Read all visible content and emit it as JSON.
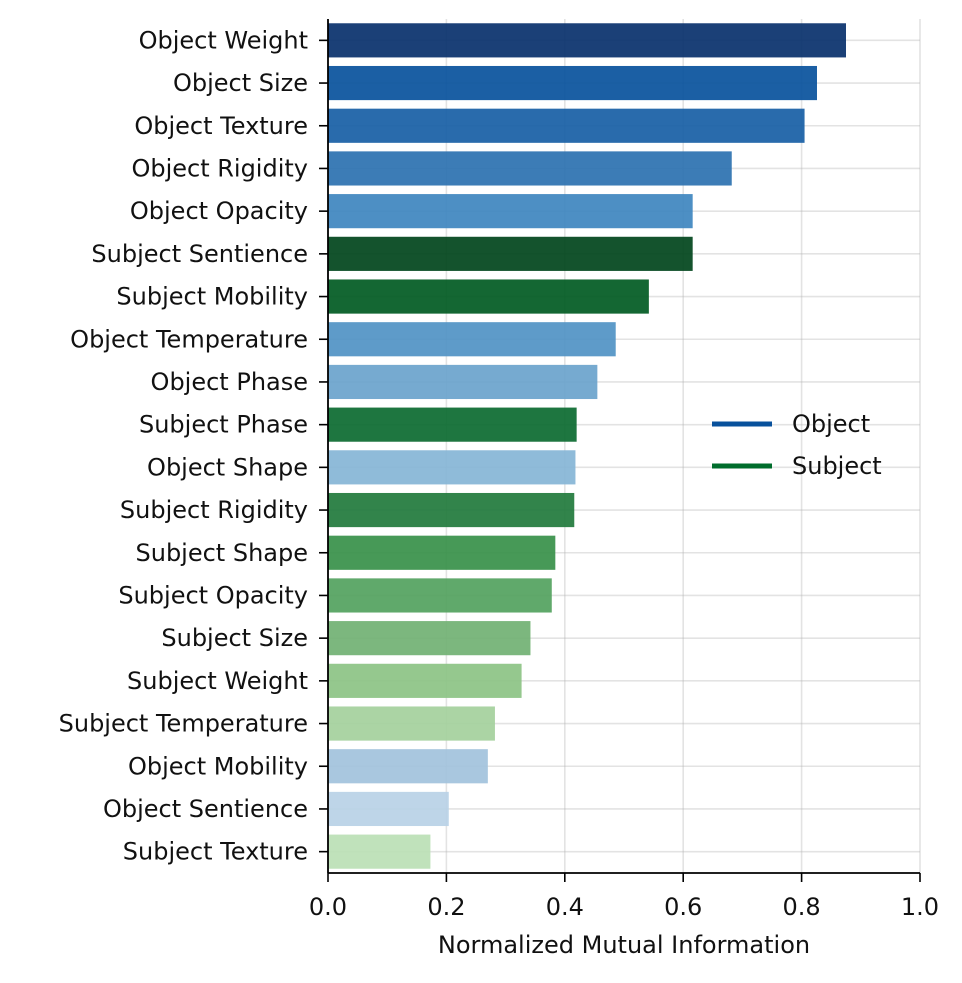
{
  "chart_data": {
    "type": "bar",
    "orientation": "horizontal",
    "title": "",
    "xlabel": "Normalized Mutual Information",
    "ylabel": "",
    "xlim": [
      0.0,
      1.0
    ],
    "xticks": [
      0.0,
      0.2,
      0.4,
      0.6,
      0.8,
      1.0
    ],
    "xtick_labels": [
      "0.0",
      "0.2",
      "0.4",
      "0.6",
      "0.8",
      "1.0"
    ],
    "grid": true,
    "legend": {
      "placement": "center-right",
      "entries": [
        {
          "name": "Object",
          "color": "#08519c"
        },
        {
          "name": "Subject",
          "color": "#006d2c"
        }
      ]
    },
    "bars": [
      {
        "category": "Object Weight",
        "value": 0.875,
        "group": "Object",
        "color": "#08306b"
      },
      {
        "category": "Object Size",
        "value": 0.826,
        "group": "Object",
        "color": "#08519c"
      },
      {
        "category": "Object Texture",
        "value": 0.805,
        "group": "Object",
        "color": "#175ea5"
      },
      {
        "category": "Object Rigidity",
        "value": 0.682,
        "group": "Object",
        "color": "#2b71b0"
      },
      {
        "category": "Object Opacity",
        "value": 0.616,
        "group": "Object",
        "color": "#3e85bf"
      },
      {
        "category": "Subject Sentience",
        "value": 0.616,
        "group": "Subject",
        "color": "#00441b"
      },
      {
        "category": "Subject Mobility",
        "value": 0.542,
        "group": "Subject",
        "color": "#005a22"
      },
      {
        "category": "Object Temperature",
        "value": 0.486,
        "group": "Object",
        "color": "#5092c4"
      },
      {
        "category": "Object Phase",
        "value": 0.455,
        "group": "Object",
        "color": "#6aa3cc"
      },
      {
        "category": "Subject Phase",
        "value": 0.42,
        "group": "Subject",
        "color": "#0b6a30"
      },
      {
        "category": "Object Shape",
        "value": 0.418,
        "group": "Object",
        "color": "#85b5d6"
      },
      {
        "category": "Subject Rigidity",
        "value": 0.416,
        "group": "Subject",
        "color": "#217a3c"
      },
      {
        "category": "Subject Shape",
        "value": 0.384,
        "group": "Subject",
        "color": "#379049"
      },
      {
        "category": "Subject Opacity",
        "value": 0.378,
        "group": "Subject",
        "color": "#53a25e"
      },
      {
        "category": "Subject Size",
        "value": 0.342,
        "group": "Subject",
        "color": "#71b173"
      },
      {
        "category": "Subject Weight",
        "value": 0.327,
        "group": "Subject",
        "color": "#8cc384"
      },
      {
        "category": "Subject Temperature",
        "value": 0.282,
        "group": "Subject",
        "color": "#a4d09c"
      },
      {
        "category": "Object Mobility",
        "value": 0.27,
        "group": "Object",
        "color": "#a2c2dc"
      },
      {
        "category": "Object Sentience",
        "value": 0.204,
        "group": "Object",
        "color": "#b9d1e6"
      },
      {
        "category": "Subject Texture",
        "value": 0.173,
        "group": "Subject",
        "color": "#bbdfb5"
      }
    ]
  }
}
